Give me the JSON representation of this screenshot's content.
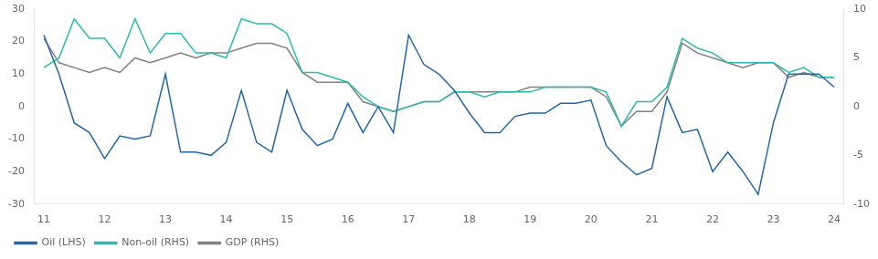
{
  "chart_data": {
    "type": "line",
    "x": [
      11,
      11.25,
      11.5,
      11.75,
      12,
      12.25,
      12.5,
      12.75,
      13,
      13.25,
      13.5,
      13.75,
      14,
      14.25,
      14.5,
      14.75,
      15,
      15.25,
      15.5,
      15.75,
      16,
      16.25,
      16.5,
      16.75,
      17,
      17.25,
      17.5,
      17.75,
      18,
      18.25,
      18.5,
      18.75,
      19,
      19.25,
      19.5,
      19.75,
      20,
      20.25,
      20.5,
      20.75,
      21,
      21.25,
      21.5,
      21.75,
      22,
      22.25,
      22.5,
      22.75,
      23,
      23.25,
      23.5,
      23.75,
      24
    ],
    "xlim": [
      10.85,
      24.15
    ],
    "xticks": [
      11,
      12,
      13,
      14,
      15,
      16,
      17,
      18,
      19,
      20,
      21,
      22,
      23,
      24
    ],
    "ylim": [
      -30,
      30
    ],
    "yticks": [
      -30,
      -20,
      -10,
      0,
      10,
      20,
      30
    ],
    "y2lim": [
      -10,
      10
    ],
    "y2ticks": [
      -10,
      -5,
      0,
      5,
      10
    ],
    "grid": false,
    "legend": "lower left",
    "series": [
      {
        "name": "Oil (LHS)",
        "color": "#2166ac",
        "axis": "y",
        "values": [
          22,
          10,
          -5,
          -8,
          -16,
          -9,
          -10,
          -9,
          10,
          -14,
          -14,
          -15,
          -11,
          5,
          -11,
          -14,
          5,
          -7,
          -12,
          -10,
          1,
          -8,
          0,
          -8,
          22,
          13,
          10,
          5,
          -2,
          -8,
          -8,
          -3,
          -2,
          -2,
          1,
          1,
          2,
          -12,
          -17,
          -21,
          -19,
          3,
          -8,
          -7,
          -20,
          -14,
          -20,
          -27,
          -5,
          10,
          10,
          10,
          6
        ]
      },
      {
        "name": "Non-oil (RHS)",
        "color": "#2abbb0",
        "axis": "y2",
        "values": [
          4.0,
          5.0,
          9.0,
          7.0,
          7.0,
          5.0,
          9.0,
          5.5,
          7.5,
          7.5,
          5.5,
          5.5,
          5.0,
          9.0,
          8.5,
          8.5,
          7.5,
          3.5,
          3.5,
          3.0,
          2.5,
          1.0,
          0.0,
          -0.5,
          0.0,
          0.5,
          0.5,
          1.5,
          1.5,
          1.0,
          1.5,
          1.5,
          1.5,
          2.0,
          2.0,
          2.0,
          2.0,
          1.5,
          -2.0,
          0.5,
          0.5,
          2.0,
          7.0,
          6.0,
          5.5,
          4.5,
          4.5,
          4.5,
          4.5,
          3.5,
          4.0,
          3.0,
          3.0
        ]
      },
      {
        "name": "GDP (RHS)",
        "color": "#808080",
        "axis": "y2",
        "values": [
          7.0,
          4.5,
          4.0,
          3.5,
          4.0,
          3.5,
          5.0,
          4.5,
          5.0,
          5.5,
          5.0,
          5.5,
          5.5,
          6.0,
          6.5,
          6.5,
          6.0,
          3.5,
          2.5,
          2.5,
          2.5,
          0.5,
          0.0,
          -0.5,
          0.0,
          0.5,
          0.5,
          1.5,
          1.5,
          1.5,
          1.5,
          1.5,
          2.0,
          2.0,
          2.0,
          2.0,
          2.0,
          1.0,
          -2.0,
          -0.5,
          -0.5,
          1.5,
          6.5,
          5.5,
          5.0,
          4.5,
          4.0,
          4.5,
          4.5,
          3.0,
          3.5,
          3.0,
          3.0
        ]
      }
    ]
  }
}
